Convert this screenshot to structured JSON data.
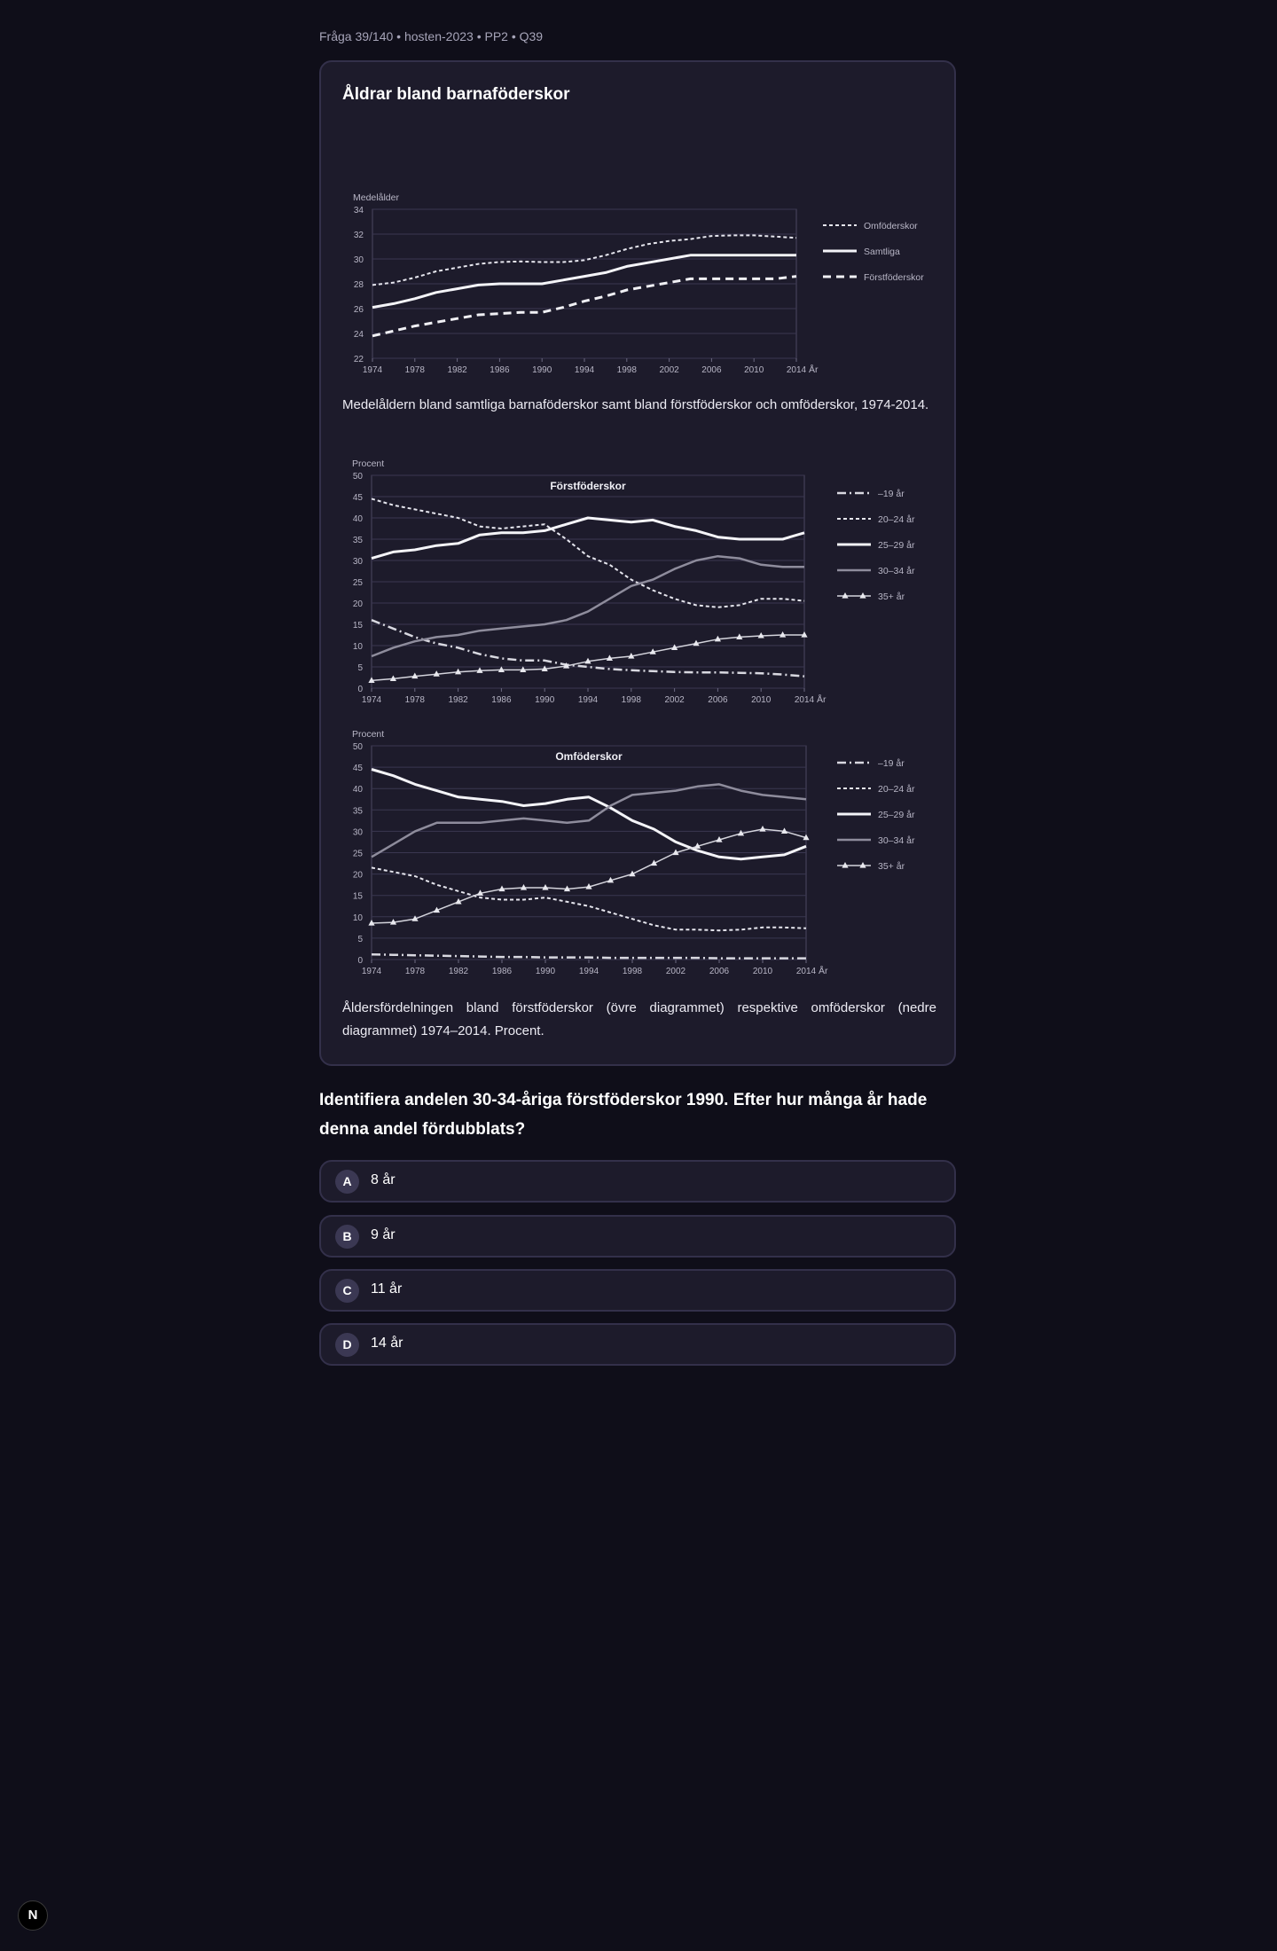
{
  "breadcrumb": "Fråga 39/140 • hosten-2023 • PP2 • Q39",
  "card": {
    "title": "Åldrar bland barnaföderskor",
    "caption1": "Medelåldern bland samtliga barnaföderskor samt bland förstföderskor och omföderskor, 1974-2014.",
    "caption2": "Åldersfördelningen bland förstföderskor (övre diagrammet) respektive omföderskor (nedre diagrammet) 1974–2014. Procent."
  },
  "question": "Identifiera andelen 30-34-åriga förstföderskor 1990. Efter hur många år hade denna andel fördubblats?",
  "options": [
    {
      "letter": "A",
      "text": "8 år"
    },
    {
      "letter": "B",
      "text": "9 år"
    },
    {
      "letter": "C",
      "text": "11 år"
    },
    {
      "letter": "D",
      "text": "14 år"
    }
  ],
  "logo_letter": "N",
  "colors": {
    "background": "#0f0e19",
    "card": "#1d1b2b",
    "border": "#33304a",
    "line_white": "#f2f2f2",
    "line_gray": "#9a98a8"
  },
  "chart_data": [
    {
      "type": "line",
      "title": "",
      "ylabel": "Medelålder",
      "xlabel": "År",
      "x_ticks": [
        "1974",
        "1978",
        "1982",
        "1986",
        "1990",
        "1994",
        "1998",
        "2002",
        "2006",
        "2010",
        "2014"
      ],
      "y_ticks": [
        "22",
        "24",
        "26",
        "28",
        "30",
        "32",
        "34"
      ],
      "xlim": [
        1974,
        2014
      ],
      "ylim": [
        22,
        34
      ],
      "grid": true,
      "legend": "right",
      "x": [
        1974,
        1976,
        1978,
        1980,
        1982,
        1984,
        1986,
        1988,
        1990,
        1992,
        1994,
        1996,
        1998,
        2000,
        2002,
        2004,
        2006,
        2008,
        2010,
        2012,
        2014
      ],
      "series": [
        {
          "name": "Omföderskor",
          "style": "dotted",
          "values": [
            27.9,
            28.1,
            28.5,
            29.0,
            29.3,
            29.6,
            29.75,
            29.8,
            29.75,
            29.75,
            29.9,
            30.3,
            30.8,
            31.2,
            31.45,
            31.6,
            31.85,
            31.9,
            31.9,
            31.8,
            31.7
          ]
        },
        {
          "name": "Samtliga",
          "style": "solid",
          "values": [
            26.1,
            26.4,
            26.8,
            27.3,
            27.6,
            27.9,
            28.0,
            28.0,
            28.0,
            28.3,
            28.6,
            28.9,
            29.4,
            29.7,
            30.0,
            30.3,
            30.3,
            30.3,
            30.3,
            30.3,
            30.3
          ]
        },
        {
          "name": "Förstföderskor",
          "style": "dashed",
          "values": [
            23.8,
            24.2,
            24.6,
            24.9,
            25.2,
            25.5,
            25.6,
            25.7,
            25.7,
            26.1,
            26.6,
            27.0,
            27.5,
            27.8,
            28.1,
            28.4,
            28.4,
            28.4,
            28.4,
            28.4,
            28.6
          ]
        }
      ]
    },
    {
      "type": "line",
      "title": "Förstföderskor",
      "ylabel": "Procent",
      "xlabel": "År",
      "x_ticks": [
        "1974",
        "1978",
        "1982",
        "1986",
        "1990",
        "1994",
        "1998",
        "2002",
        "2006",
        "2010",
        "2014"
      ],
      "y_ticks": [
        "0",
        "5",
        "10",
        "15",
        "20",
        "25",
        "30",
        "35",
        "40",
        "45",
        "50"
      ],
      "xlim": [
        1974,
        2014
      ],
      "ylim": [
        0,
        50
      ],
      "grid": true,
      "legend": "right",
      "x": [
        1974,
        1976,
        1978,
        1980,
        1982,
        1984,
        1986,
        1988,
        1990,
        1992,
        1994,
        1996,
        1998,
        2000,
        2002,
        2004,
        2006,
        2008,
        2010,
        2012,
        2014
      ],
      "series": [
        {
          "name": "–19 år",
          "style": "dashdot",
          "values": [
            16,
            14,
            12,
            10.5,
            9.5,
            8,
            7,
            6.5,
            6.5,
            5.5,
            5,
            4.5,
            4.2,
            4,
            3.8,
            3.7,
            3.7,
            3.6,
            3.5,
            3.2,
            2.8
          ]
        },
        {
          "name": "20–24 år",
          "style": "dotted",
          "values": [
            44.5,
            43,
            42,
            41,
            40,
            38,
            37.5,
            38,
            38.5,
            35,
            31,
            29,
            25.5,
            23,
            21,
            19.5,
            19,
            19.5,
            21,
            21,
            20.5
          ]
        },
        {
          "name": "25–29 år",
          "style": "solid",
          "values": [
            30.5,
            32,
            32.5,
            33.5,
            34,
            36,
            36.5,
            36.5,
            37,
            38.5,
            40,
            39.5,
            39,
            39.5,
            38,
            37,
            35.5,
            35,
            35,
            35,
            36.5
          ]
        },
        {
          "name": "30–34 år",
          "style": "solid-gray",
          "values": [
            7.5,
            9.5,
            11,
            12,
            12.5,
            13.5,
            14,
            14.5,
            15,
            16,
            18,
            21,
            24,
            25.5,
            28,
            30,
            31,
            30.5,
            29,
            28.5,
            28.5
          ]
        },
        {
          "name": "35+ år",
          "style": "triangles",
          "values": [
            1.8,
            2.2,
            2.8,
            3.3,
            3.8,
            4.1,
            4.3,
            4.3,
            4.5,
            5.2,
            6.3,
            7,
            7.5,
            8.5,
            9.5,
            10.5,
            11.5,
            12,
            12.3,
            12.5,
            12.5
          ]
        }
      ]
    },
    {
      "type": "line",
      "title": "Omföderskor",
      "ylabel": "Procent",
      "xlabel": "År",
      "x_ticks": [
        "1974",
        "1978",
        "1982",
        "1986",
        "1990",
        "1994",
        "1998",
        "2002",
        "2006",
        "2010",
        "2014"
      ],
      "y_ticks": [
        "0",
        "5",
        "10",
        "15",
        "20",
        "25",
        "30",
        "35",
        "40",
        "45",
        "50"
      ],
      "xlim": [
        1974,
        2014
      ],
      "ylim": [
        0,
        50
      ],
      "grid": true,
      "legend": "right",
      "x": [
        1974,
        1976,
        1978,
        1980,
        1982,
        1984,
        1986,
        1988,
        1990,
        1992,
        1994,
        1996,
        1998,
        2000,
        2002,
        2004,
        2006,
        2008,
        2010,
        2012,
        2014
      ],
      "series": [
        {
          "name": "–19 år",
          "style": "dashdot",
          "values": [
            1.2,
            1.1,
            1,
            0.9,
            0.8,
            0.7,
            0.6,
            0.6,
            0.5,
            0.5,
            0.5,
            0.4,
            0.4,
            0.4,
            0.4,
            0.4,
            0.3,
            0.3,
            0.3,
            0.3,
            0.3
          ]
        },
        {
          "name": "20–24 år",
          "style": "dotted",
          "values": [
            21.5,
            20.5,
            19.5,
            17.5,
            16,
            14.5,
            14,
            14,
            14.5,
            13.5,
            12.5,
            11,
            9.5,
            8,
            7,
            7,
            6.8,
            7,
            7.5,
            7.5,
            7.3
          ]
        },
        {
          "name": "25–29 år",
          "style": "solid",
          "values": [
            44.5,
            43,
            41,
            39.5,
            38,
            37.5,
            37,
            36,
            36.5,
            37.5,
            38,
            35.5,
            32.5,
            30.5,
            27.5,
            25.5,
            24,
            23.5,
            24,
            24.5,
            26.5
          ]
        },
        {
          "name": "30–34 år",
          "style": "solid-gray",
          "values": [
            24,
            27,
            30,
            32,
            32,
            32,
            32.5,
            33,
            32.5,
            32,
            32.5,
            36,
            38.5,
            39,
            39.5,
            40.5,
            41,
            39.5,
            38.5,
            38,
            37.5
          ]
        },
        {
          "name": "35+ år",
          "style": "triangles",
          "values": [
            8.5,
            8.7,
            9.5,
            11.5,
            13.5,
            15.5,
            16.5,
            16.8,
            16.8,
            16.5,
            17,
            18.5,
            20,
            22.5,
            25,
            26.5,
            28,
            29.5,
            30.5,
            30,
            28.5
          ]
        }
      ]
    }
  ]
}
